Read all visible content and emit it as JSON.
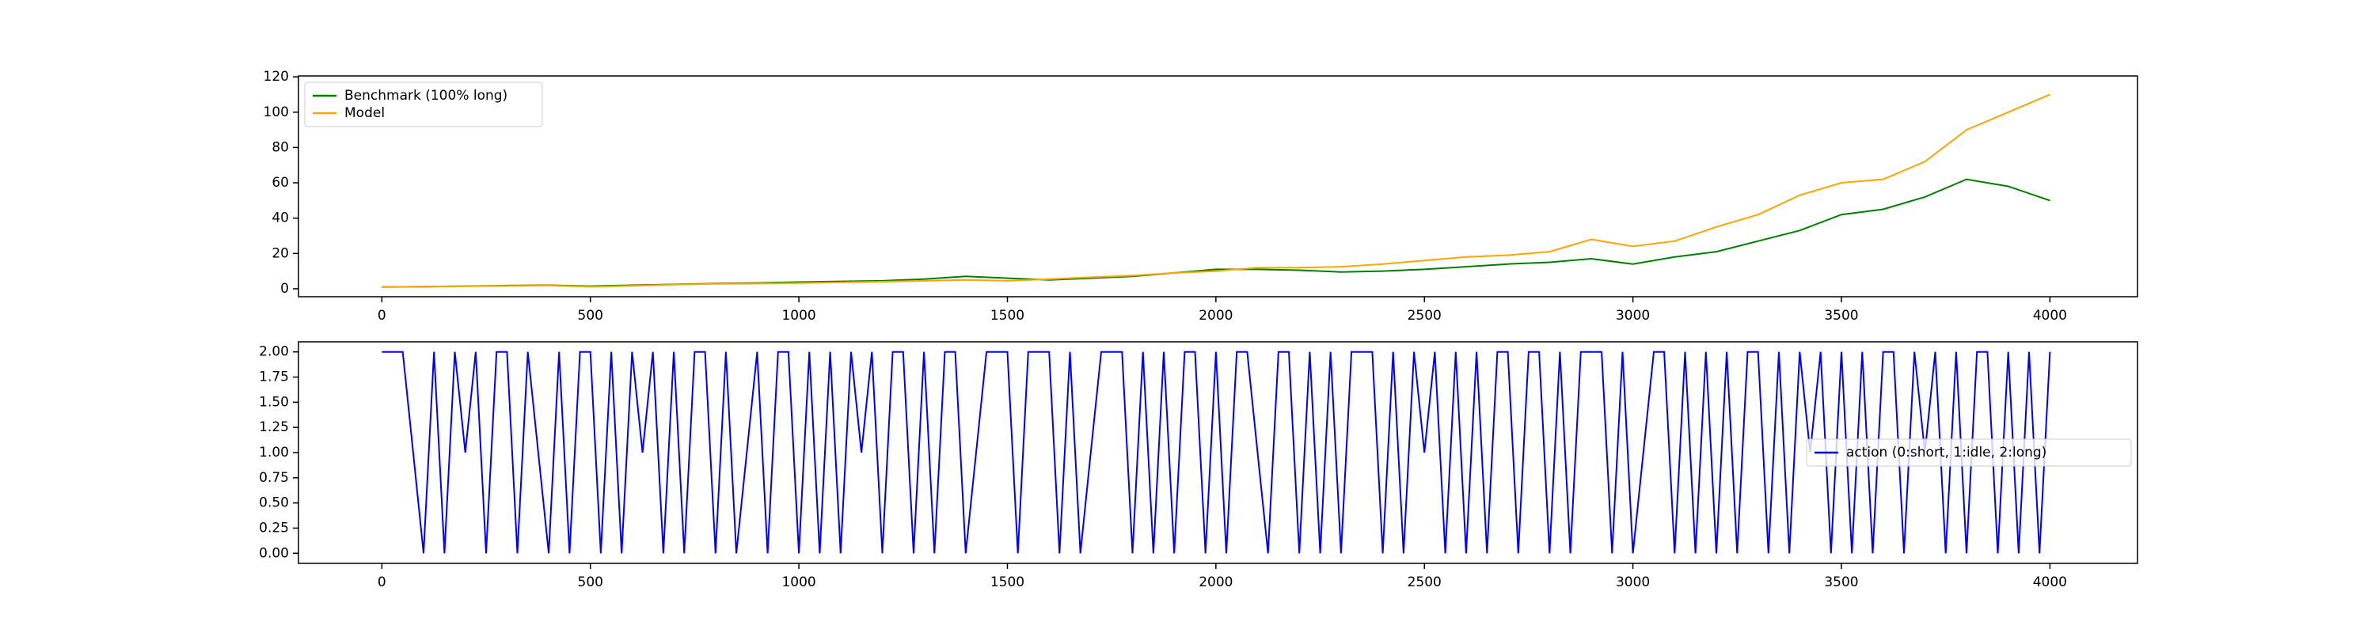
{
  "chart_data": [
    {
      "type": "line",
      "x": [
        0,
        100,
        200,
        300,
        400,
        500,
        600,
        700,
        800,
        900,
        1000,
        1100,
        1200,
        1300,
        1400,
        1500,
        1600,
        1700,
        1800,
        1900,
        2000,
        2100,
        2200,
        2300,
        2400,
        2500,
        2600,
        2700,
        2800,
        2900,
        3000,
        3100,
        3200,
        3300,
        3400,
        3500,
        3600,
        3700,
        3800,
        3900,
        4000
      ],
      "series": [
        {
          "name": "Benchmark (100% long)",
          "color": "#008000",
          "values": [
            1,
            1.2,
            1.5,
            1.8,
            2,
            1.5,
            2,
            2.5,
            3,
            3.3,
            3.8,
            4.2,
            4.5,
            5.5,
            7,
            6,
            5,
            6,
            7,
            9,
            11,
            11,
            10.5,
            9.5,
            10,
            11,
            12.5,
            14,
            15,
            17,
            14,
            18,
            21,
            27,
            33,
            42,
            45,
            52,
            62,
            58,
            50
          ]
        },
        {
          "name": "Model",
          "color": "#ffa500",
          "values": [
            1,
            1.2,
            1.4,
            1.6,
            1.8,
            1.2,
            1.7,
            2.3,
            2.8,
            3,
            3.2,
            3.6,
            4,
            4.5,
            5,
            4.5,
            5.5,
            6.5,
            7.5,
            9,
            10,
            12,
            12,
            12.5,
            14,
            16,
            18,
            19,
            21,
            28,
            24,
            27,
            35,
            42,
            53,
            60,
            62,
            72,
            90,
            100,
            110
          ]
        }
      ],
      "xlim": [
        -200,
        4210
      ],
      "xticks": [
        0,
        500,
        1000,
        1500,
        2000,
        2500,
        3000,
        3500,
        4000
      ],
      "ylim": [
        -4.5,
        120.5
      ],
      "yticks": [
        0,
        20,
        40,
        60,
        80,
        100,
        120
      ],
      "legend": "upper left"
    },
    {
      "type": "line",
      "x": [
        0,
        25,
        50,
        75,
        100,
        125,
        150,
        175,
        200,
        225,
        250,
        275,
        300,
        325,
        350,
        375,
        400,
        425,
        450,
        475,
        500,
        525,
        550,
        575,
        600,
        625,
        650,
        675,
        700,
        725,
        750,
        775,
        800,
        825,
        850,
        875,
        900,
        925,
        950,
        975,
        1000,
        1025,
        1050,
        1075,
        1100,
        1125,
        1150,
        1175,
        1200,
        1225,
        1250,
        1275,
        1300,
        1325,
        1350,
        1375,
        1400,
        1425,
        1450,
        1475,
        1500,
        1525,
        1550,
        1575,
        1600,
        1625,
        1650,
        1675,
        1700,
        1725,
        1750,
        1775,
        1800,
        1825,
        1850,
        1875,
        1900,
        1925,
        1950,
        1975,
        2000,
        2025,
        2050,
        2075,
        2100,
        2125,
        2150,
        2175,
        2200,
        2225,
        2250,
        2275,
        2300,
        2325,
        2350,
        2375,
        2400,
        2425,
        2450,
        2475,
        2500,
        2525,
        2550,
        2575,
        2600,
        2625,
        2650,
        2675,
        2700,
        2725,
        2750,
        2775,
        2800,
        2825,
        2850,
        2875,
        2900,
        2925,
        2950,
        2975,
        3000,
        3025,
        3050,
        3075,
        3100,
        3125,
        3150,
        3175,
        3200,
        3225,
        3250,
        3275,
        3300,
        3325,
        3350,
        3375,
        3400,
        3425,
        3450,
        3475,
        3500,
        3525,
        3550,
        3575,
        3600,
        3625,
        3650,
        3675,
        3700,
        3725,
        3750,
        3775,
        3800,
        3825,
        3850,
        3875,
        3900,
        3925,
        3950,
        3975,
        4000
      ],
      "series": [
        {
          "name": "action (0:short, 1:idle, 2:long)",
          "color": "#0000ff",
          "values": [
            2,
            2,
            2,
            1,
            0,
            2,
            0,
            2,
            1,
            2,
            0,
            2,
            2,
            0,
            2,
            1,
            0,
            2,
            0,
            2,
            2,
            0,
            2,
            0,
            2,
            1,
            2,
            0,
            2,
            0,
            2,
            2,
            0,
            2,
            0,
            1,
            2,
            0,
            2,
            2,
            0,
            2,
            0,
            2,
            0,
            2,
            1,
            2,
            0,
            2,
            2,
            0,
            2,
            0,
            2,
            2,
            0,
            1,
            2,
            2,
            2,
            0,
            2,
            2,
            2,
            0,
            2,
            0,
            1,
            2,
            2,
            2,
            0,
            2,
            0,
            2,
            0,
            2,
            2,
            0,
            2,
            0,
            2,
            2,
            1,
            0,
            2,
            2,
            0,
            2,
            0,
            2,
            0,
            2,
            2,
            2,
            0,
            2,
            0,
            2,
            1,
            2,
            0,
            2,
            0,
            2,
            0,
            2,
            2,
            0,
            2,
            2,
            0,
            2,
            0,
            2,
            2,
            2,
            0,
            2,
            0,
            1,
            2,
            2,
            0,
            2,
            0,
            2,
            0,
            2,
            0,
            2,
            2,
            0,
            2,
            0,
            2,
            1,
            2,
            0,
            2,
            0,
            2,
            0,
            2,
            2,
            0,
            2,
            1,
            2,
            0,
            2,
            0,
            2,
            2,
            0,
            2,
            0,
            2,
            0,
            2
          ]
        }
      ],
      "xlim": [
        -200,
        4210
      ],
      "xticks": [
        0,
        500,
        1000,
        1500,
        2000,
        2500,
        3000,
        3500,
        4000
      ],
      "ylim": [
        -0.1,
        2.1
      ],
      "yticks": [
        {
          "value": 0,
          "label": "0.00"
        },
        {
          "value": 0.25,
          "label": "0.25"
        },
        {
          "value": 0.5,
          "label": "0.50"
        },
        {
          "value": 0.75,
          "label": "0.75"
        },
        {
          "value": 1,
          "label": "1.00"
        },
        {
          "value": 1.25,
          "label": "1.25"
        },
        {
          "value": 1.5,
          "label": "1.50"
        },
        {
          "value": 1.75,
          "label": "1.75"
        },
        {
          "value": 2,
          "label": "2.00"
        }
      ],
      "legend": "center right"
    }
  ]
}
